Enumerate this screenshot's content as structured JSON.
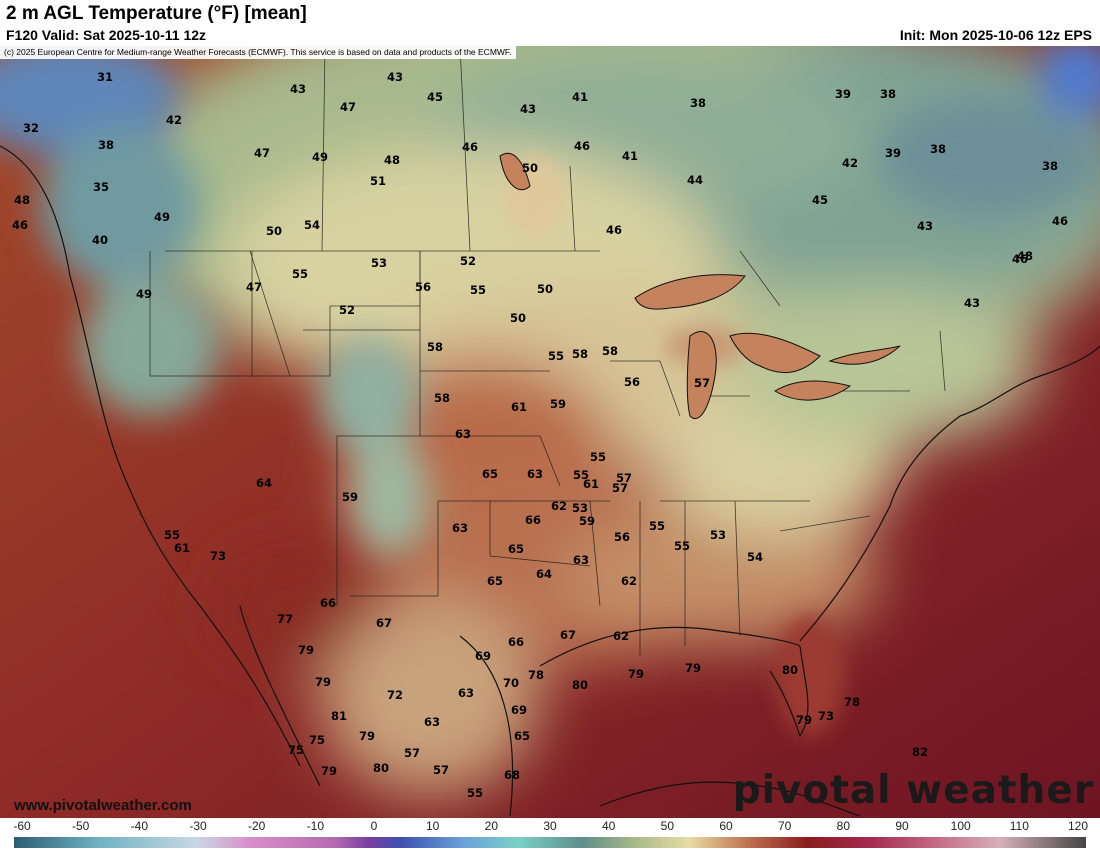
{
  "header": {
    "title": "2 m AGL Temperature (°F) [mean]",
    "valid": "F120 Valid: Sat 2025-10-11 12z",
    "init": "Init: Mon 2025-10-06 12z EPS"
  },
  "copyright": "(c) 2025 European Centre for Medium-range Weather Forecasts (ECMWF). This service is based on data and products of the ECMWF.",
  "website": "www.pivotalweather.com",
  "logo": "pivotal weather",
  "scale": {
    "ticks": [
      "-60",
      "-50",
      "-40",
      "-30",
      "-20",
      "-10",
      "0",
      "10",
      "20",
      "30",
      "40",
      "50",
      "60",
      "70",
      "80",
      "90",
      "100",
      "110",
      "120"
    ]
  },
  "temperatures": [
    "31",
    "43",
    "43",
    "45",
    "41",
    "38",
    "39",
    "38",
    "32",
    "42",
    "47",
    "43",
    "46",
    "41",
    "38",
    "42",
    "47",
    "49",
    "48",
    "46",
    "39",
    "38",
    "38",
    "35",
    "48",
    "51",
    "50",
    "49",
    "54",
    "50",
    "44",
    "43",
    "40",
    "46",
    "49",
    "47",
    "45",
    "46",
    "43",
    "46",
    "52",
    "53",
    "46",
    "48",
    "56",
    "55",
    "50",
    "50",
    "55",
    "52",
    "55",
    "56",
    "57",
    "58",
    "58",
    "59",
    "55",
    "55",
    "53",
    "61",
    "63",
    "64",
    "63",
    "61",
    "58",
    "59",
    "58",
    "57",
    "56",
    "65",
    "63",
    "66",
    "62",
    "59",
    "57",
    "55",
    "55",
    "53",
    "54",
    "61",
    "62",
    "65",
    "64",
    "63",
    "62",
    "65",
    "66",
    "67",
    "66",
    "67",
    "69",
    "70",
    "78",
    "79",
    "80",
    "79",
    "82",
    "80",
    "79",
    "75",
    "73",
    "77",
    "79",
    "79",
    "81",
    "75",
    "79",
    "80",
    "79",
    "78",
    "73",
    "55",
    "57",
    "57",
    "55",
    "72",
    "68",
    "69",
    "65",
    "63",
    "63"
  ]
}
